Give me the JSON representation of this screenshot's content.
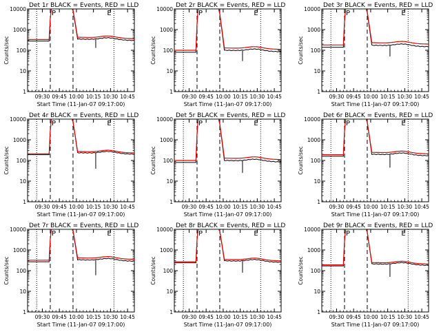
{
  "chart_data": {
    "type": "line",
    "panels": [
      {
        "title": "Det 1r  BLACK = Events, RED = LLD",
        "peak_letter": "P",
        "end_letter": "E",
        "base": [
          280,
          330
        ],
        "spike": 130
      },
      {
        "title": "Det 2r  BLACK = Events, RED = LLD",
        "peak_letter": "P",
        "end_letter": "E",
        "base": [
          80,
          100
        ],
        "spike": 30
      },
      {
        "title": "Det 3r  BLACK = Events, RED = LLD",
        "peak_letter": "P",
        "end_letter": "E",
        "base": [
          140,
          180
        ],
        "spike": 50
      },
      {
        "title": "Det 4r  BLACK = Events, RED = LLD",
        "peak_letter": "P",
        "end_letter": "E",
        "base": [
          190,
          210
        ],
        "spike": 40
      },
      {
        "title": "Det 5r  BLACK = Events, RED = LLD",
        "peak_letter": "P",
        "end_letter": "E",
        "base": [
          80,
          100
        ],
        "spike": 25
      },
      {
        "title": "Det 6r  BLACK = Events, RED = LLD",
        "peak_letter": "P",
        "end_letter": "E",
        "base": [
          160,
          190
        ],
        "spike": 45
      },
      {
        "title": "Det 7r  BLACK = Events, RED = LLD",
        "peak_letter": "P",
        "end_letter": "E",
        "base": [
          270,
          320
        ],
        "spike": 60
      },
      {
        "title": "Det 8r  BLACK = Events, RED = LLD",
        "peak_letter": "P",
        "end_letter": "E",
        "base": [
          240,
          270
        ],
        "spike": 80
      },
      {
        "title": "Det 9r  BLACK = Events, RED = LLD",
        "peak_letter": "P",
        "end_letter": "E",
        "base": [
          170,
          190
        ],
        "spike": 50
      }
    ],
    "xlabel": "Start Time (11-Jan-07 09:17:00)",
    "ylabel": "Counts/sec",
    "x_ticks": [
      "09:30",
      "09:45",
      "10:00",
      "10:15",
      "10:30",
      "10:45"
    ],
    "y_ticks": [
      "1",
      "10",
      "100",
      "1000",
      "10000"
    ],
    "ylim": [
      1,
      10000
    ],
    "y_scale": "log",
    "series": [
      {
        "name": "Events",
        "color": "#000000"
      },
      {
        "name": "LLD",
        "color": "#e00000"
      }
    ]
  }
}
